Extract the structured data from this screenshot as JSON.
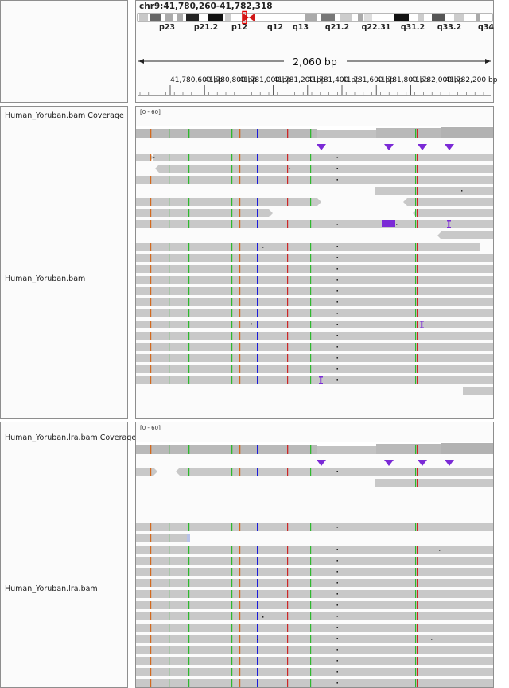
{
  "locus": "chr9:41,780,260-41,782,318",
  "cytobands": [
    "p23",
    "p21.2",
    "p12",
    "q12",
    "q13",
    "q21.2",
    "q22.31",
    "q31.2",
    "q33.2",
    "q34"
  ],
  "span_label": "2,060 bp",
  "ruler_ticks": [
    "41,780,600 bp",
    "41,780,800 bp",
    "41,781,000 bp",
    "41,781,200 bp",
    "41,781,400 bp",
    "41,781,600 bp",
    "41,781,800 bp",
    "41,782,000 bp",
    "41,782,200 bp"
  ],
  "tracks": [
    {
      "coverage_name": "Human_Yoruban.bam Coverage",
      "range": "[0 - 60]",
      "alignment_name": "Human_Yoruban.bam"
    },
    {
      "coverage_name": "Human_Yoruban.lra.bam Coverage",
      "range": "[0 - 60]",
      "alignment_name": "Human_Yoruban.lra.bam"
    }
  ],
  "colors": {
    "read": "#c8c8c8",
    "coverage": "#b4b4b4",
    "insertion": "#7b2ad6",
    "panel_border": "#8e8e8e",
    "centromere": "#d01818"
  }
}
